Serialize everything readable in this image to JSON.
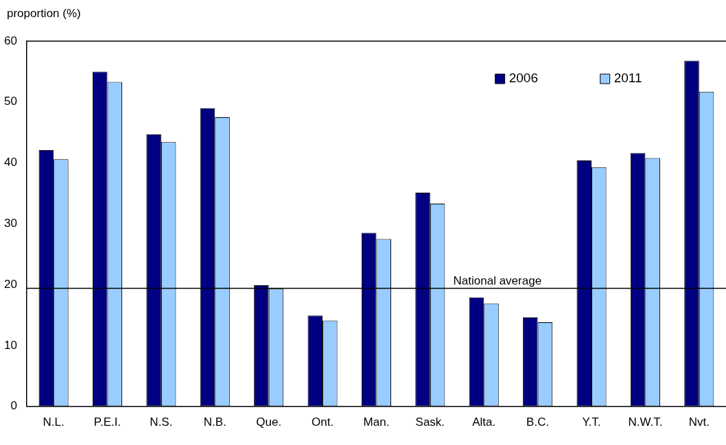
{
  "chart_data": {
    "type": "bar",
    "ylabel": "proportion (%)",
    "categories": [
      "N.L.",
      "P.E.I.",
      "N.S.",
      "N.B.",
      "Que.",
      "Ont.",
      "Man.",
      "Sask.",
      "Alta.",
      "B.C.",
      "Y.T.",
      "N.W.T.",
      "Nvt."
    ],
    "series": [
      {
        "name": "2006",
        "color": "#000080",
        "values": [
          42.1,
          55.0,
          44.7,
          49.0,
          19.9,
          14.9,
          28.5,
          35.1,
          17.9,
          14.6,
          40.4,
          41.6,
          56.8
        ]
      },
      {
        "name": "2011",
        "color": "#99ccff",
        "values": [
          40.6,
          53.3,
          43.4,
          47.5,
          19.3,
          14.1,
          27.5,
          33.3,
          16.9,
          13.8,
          39.3,
          40.8,
          51.7
        ]
      }
    ],
    "ylim": [
      0,
      60
    ],
    "yticks": [
      0,
      10,
      20,
      30,
      40,
      50,
      60
    ],
    "ref_lines": [
      {
        "axis": "y",
        "value": 19.4,
        "label": "National average"
      }
    ],
    "legend": "top right",
    "grid": false
  }
}
